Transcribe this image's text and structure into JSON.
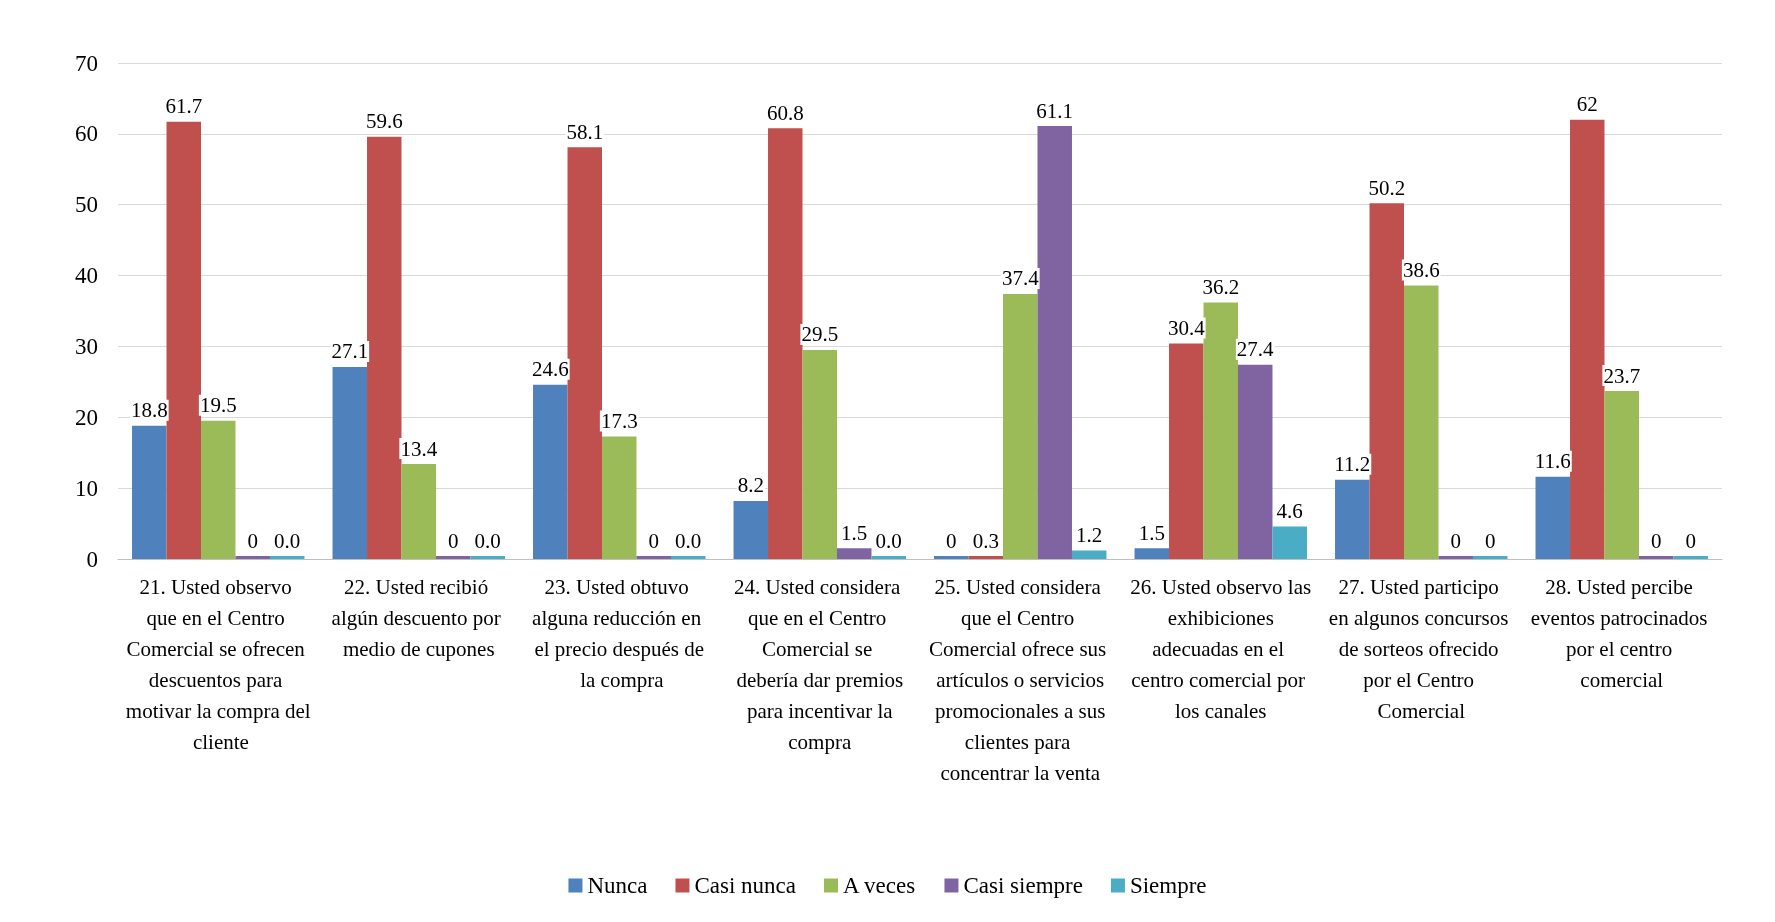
{
  "chart_data": {
    "type": "bar",
    "categories": [
      "21. Usted observo que en el Centro Comercial se ofrecen descuentos para motivar la compra del cliente",
      "22. Usted recibió algún descuento por medio de cupones",
      "23. Usted obtuvo alguna reducción en el precio después de la compra",
      "24. Usted considera que en el Centro Comercial se debería dar premios para incentivar la compra",
      "25. Usted considera que el Centro Comercial ofrece sus artículos o servicios promocionales a sus clientes para concentrar la venta",
      "26. Usted observo las exhibiciones adecuadas en el centro comercial por los canales",
      "27. Usted participo en algunos concursos de sorteos ofrecido por el Centro Comercial",
      "28. Usted percibe eventos patrocinados por el centro comercial"
    ],
    "series": [
      {
        "name": "Nunca",
        "color": "#4f81bd",
        "values": [
          18.8,
          27.1,
          24.6,
          8.2,
          0,
          1.5,
          11.2,
          11.6
        ],
        "value_labels": [
          "18.8",
          "27.1",
          "24.6",
          "8.2",
          "0",
          "1.5",
          "11.2",
          "11.6"
        ]
      },
      {
        "name": "Casi nunca",
        "color": "#c0504d",
        "values": [
          61.7,
          59.6,
          58.1,
          60.8,
          0.3,
          30.4,
          50.2,
          62
        ],
        "value_labels": [
          "61.7",
          "59.6",
          "58.1",
          "60.8",
          "0.3",
          "30.4",
          "50.2",
          "62"
        ]
      },
      {
        "name": "A veces",
        "color": "#9bbb59",
        "values": [
          19.5,
          13.4,
          17.3,
          29.5,
          37.4,
          36.2,
          38.6,
          23.7
        ],
        "value_labels": [
          "19.5",
          "13.4",
          "17.3",
          "29.5",
          "37.4",
          "36.2",
          "38.6",
          "23.7"
        ]
      },
      {
        "name": "Casi siempre",
        "color": "#8064a2",
        "values": [
          0,
          0,
          0,
          1.5,
          61.1,
          27.4,
          0,
          0
        ],
        "value_labels": [
          "0",
          "0",
          "0",
          "1.5",
          "61.1",
          "27.4",
          "0",
          "0"
        ]
      },
      {
        "name": "Siempre",
        "color": "#4bacc6",
        "values": [
          0,
          0,
          0,
          0,
          1.2,
          4.6,
          0,
          0
        ],
        "value_labels": [
          "0.0",
          "0.0",
          "0.0",
          "0.0",
          "1.2",
          "4.6",
          "0",
          "0"
        ]
      }
    ],
    "ylim": [
      0,
      70
    ],
    "yticks": [
      0,
      10,
      20,
      30,
      40,
      50,
      60,
      70
    ],
    "grid": true,
    "legend": "bottom"
  }
}
